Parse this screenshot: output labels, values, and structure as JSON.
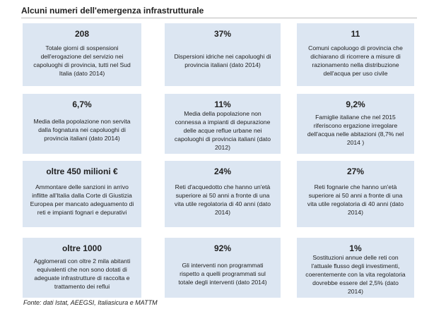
{
  "title": "Alcuni numeri dell'emergenza infrastrutturale",
  "cards": [
    {
      "headline": "208",
      "text": "Totale giorni di sospensioni dell'erogazione del servizio nei capoluoghi di provincia, tutti nel Sud Italia (dato 2014)"
    },
    {
      "headline": "37%",
      "text": "Dispersioni idriche  nei capoluoghi di provincia italiani (dato 2014)"
    },
    {
      "headline": "11",
      "text": "Comuni capoluogo di provincia  che dichiarano di ricorrere a  misure di razionamento nella distribuzione dell'acqua per uso civile"
    },
    {
      "headline": "6,7%",
      "text": "Media della popolazione non servita dalla fognatura nei capoluoghi di provincia italiani (dato 2014)"
    },
    {
      "headline": "11%",
      "text": "Media della popolazione non connessa a impianti di depurazione delle acque reflue urbane nei capoluoghi di provincia italiani (dato 2012)"
    },
    {
      "headline": "9,2%",
      "text": "Famiglie italiane che nel 2015 riferiscono ergazione irregolare dell'acqua nelle abitazioni  (8,7% nel 2014 )"
    },
    {
      "headline": "oltre 450 milioni €",
      "text": "Ammontare delle sanzioni in arrivo inflitte all'Italia dalla Corte di Giustizia Europea per mancato adeguamento di reti e impianti fognari e depurativi"
    },
    {
      "headline": "24%",
      "text": "Reti d'acquedotto che hanno un'età superiore ai 50 anni a fronte di una vita utile regolatoria di 40 anni (dato 2014)"
    },
    {
      "headline": "27%",
      "text": "Reti fognarie che  hanno un'età superiore ai 50 anni a fronte di una vita utile regolatoria di 40 anni (dato 2014)"
    },
    {
      "headline": "oltre 1000",
      "text": "Agglomerati con oltre 2 mila abitanti equivalenti che non sono dotati di adeguate infrastrutture di raccolta e trattamento dei reflui"
    },
    {
      "headline": "92%",
      "text": "Gli interventi non programmati rispetto a quelli programmati sul totale degli interventi (dato 2014)"
    },
    {
      "headline": "1%",
      "text": "Sostituzioni annue delle reti con l'attuale flusso degli investimenti, coerentemente con la vita regolatoria dovrebbe essere del 2,5% (dato 2014)"
    }
  ],
  "source": "Fonte: dati Istat, AEEGSI, Italiasicura e MATTM"
}
